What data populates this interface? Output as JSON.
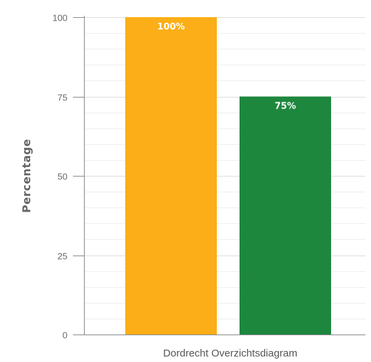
{
  "chart_data": {
    "type": "bar",
    "ylabel": "Percentage",
    "xlabel": "Dordrecht Overzichtsdiagram",
    "ylim": [
      0,
      100
    ],
    "yticks": [
      0,
      25,
      50,
      75,
      100
    ],
    "grid": true,
    "legend": "none",
    "bars": [
      {
        "value": 100,
        "label": "100%",
        "color": "#FBAE17"
      },
      {
        "value": 75,
        "label": "75%",
        "color": "#1E873E"
      }
    ]
  }
}
